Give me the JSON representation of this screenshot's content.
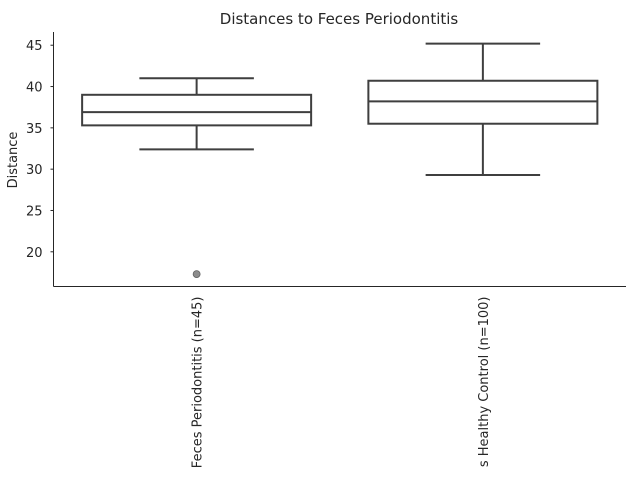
{
  "chart_data": {
    "type": "box",
    "title": "Distances to Feces Periodontitis",
    "xlabel": "",
    "ylabel": "Distance",
    "ylim": [
      15.8,
      46.6
    ],
    "yticks": [
      20,
      25,
      30,
      35,
      40,
      45
    ],
    "ytick_labels": [
      "20",
      "25",
      "30",
      "35",
      "40",
      "45"
    ],
    "grid": false,
    "legend": "none",
    "categories": [
      "Feces Periodontitis (n=45)",
      "s Healthy Control (n=100)"
    ],
    "boxes": [
      {
        "label": "Feces Periodontitis (n=45)",
        "whisker_low": 32.4,
        "q1": 35.3,
        "median": 36.9,
        "q3": 39.0,
        "whisker_high": 41.0,
        "outliers": [
          17.3
        ]
      },
      {
        "label": "s Healthy Control (n=100)",
        "whisker_low": 29.3,
        "q1": 35.5,
        "median": 38.2,
        "q3": 40.7,
        "whisker_high": 45.2,
        "outliers": []
      }
    ],
    "colors": {
      "box_edge": "#3f3f3f",
      "box_fill": "#ffffff",
      "flier": "#8c8c8c",
      "axis": "#262626"
    }
  }
}
